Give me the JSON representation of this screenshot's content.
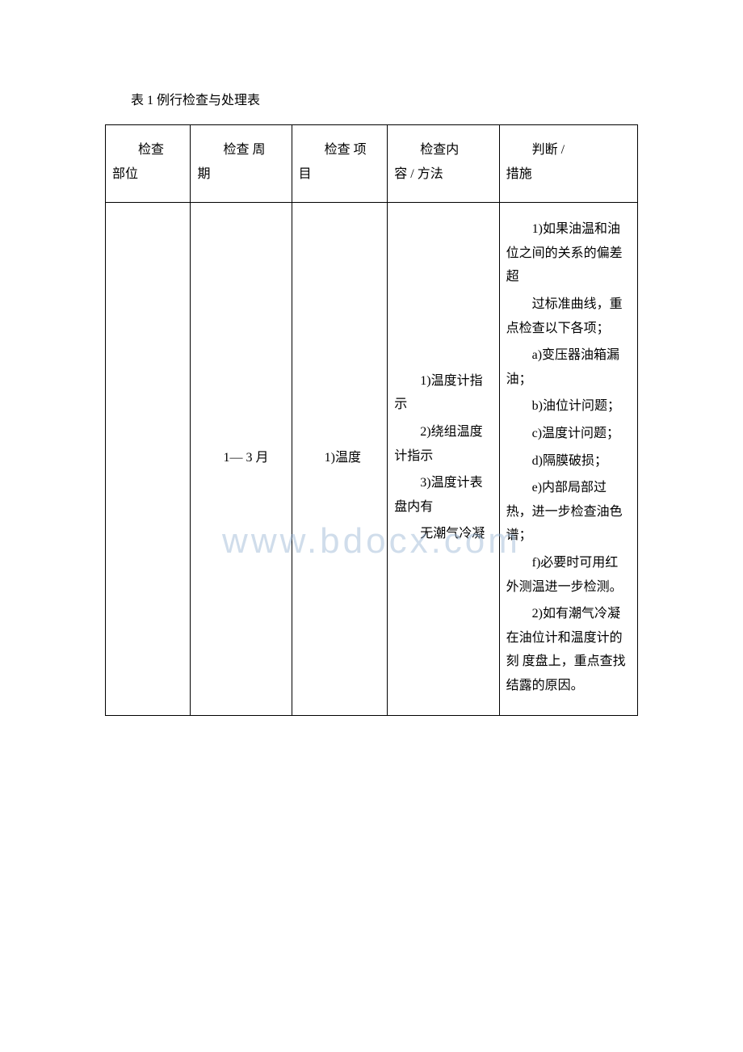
{
  "title": "表 1 例行检查与处理表",
  "watermark": "www.bdocx.com",
  "headers": {
    "h1_l1": "检查",
    "h1_l2": "部位",
    "h2_l1": "检查 周",
    "h2_l2": "期",
    "h3_l1": "检查 项",
    "h3_l2": "目",
    "h4_l1": "检查内",
    "h4_l2": "容 / 方法",
    "h5_l1": "判断 /",
    "h5_l2": "措施"
  },
  "row": {
    "c1": "",
    "c2": "1— 3 月",
    "c3": "1)温度",
    "c4": {
      "p1": "1)温度计指示",
      "p2": "2)绕组温度计指示",
      "p3": "3)温度计表盘内有",
      "p4": "无潮气冷凝"
    },
    "c5": {
      "p1": "1)如果油温和油位之间的关系的偏差超",
      "p2": "过标准曲线，重点检查以下各项；",
      "p3": "a)变压器油箱漏油；",
      "p4": "b)油位计问题；",
      "p5": "c)温度计问题；",
      "p6": "d)隔膜破损；",
      "p7": "e)内部局部过热，进一步检查油色谱；",
      "p8": "f)必要时可用红外测温进一步检测。",
      "p9": "2)如有潮气冷凝在油位计和温度计的刻 度盘上，重点查找结露的原因。"
    }
  }
}
